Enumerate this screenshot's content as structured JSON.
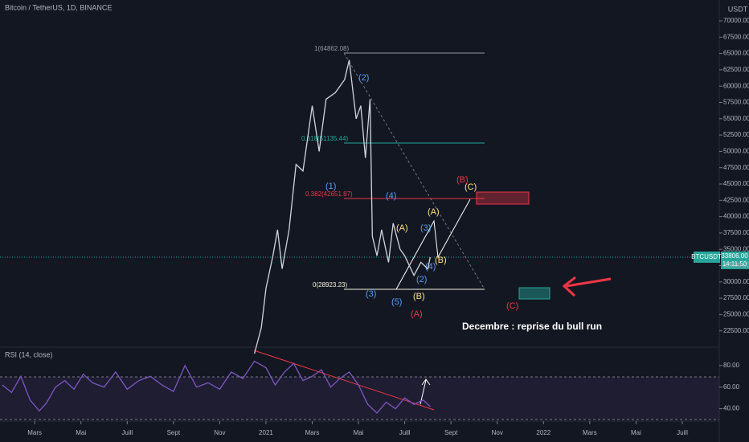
{
  "chart_data": [
    {
      "type": "line",
      "title": "Bitcoin / TetherUS, 1D, BINANCE",
      "y_unit": "USDT",
      "last_symbol": "BTCUSDT",
      "last_price": "33806.00",
      "countdown": "14:11:50",
      "xlim": [
        0.5,
        31.6
      ],
      "ylim": [
        20000,
        73200
      ],
      "yticks": [
        {
          "value": 22500,
          "label": "22500.00"
        },
        {
          "value": 25000,
          "label": "25000.00"
        },
        {
          "value": 27500,
          "label": "27500.00"
        },
        {
          "value": 30000,
          "label": "30000.00"
        },
        {
          "value": 32500,
          "label": "32500.00"
        },
        {
          "value": 35000,
          "label": "35000.00"
        },
        {
          "value": 37500,
          "label": "37500.00"
        },
        {
          "value": 40000,
          "label": "40000.00"
        },
        {
          "value": 42500,
          "label": "42500.00"
        },
        {
          "value": 45000,
          "label": "45000.00"
        },
        {
          "value": 47500,
          "label": "47500.00"
        },
        {
          "value": 50000,
          "label": "50000.00"
        },
        {
          "value": 52500,
          "label": "52500.00"
        },
        {
          "value": 55000,
          "label": "55000.00"
        },
        {
          "value": 57500,
          "label": "57500.00"
        },
        {
          "value": 60000,
          "label": "60000.00"
        },
        {
          "value": 62500,
          "label": "62500.00"
        },
        {
          "value": 65000,
          "label": "65000.00"
        },
        {
          "value": 67500,
          "label": "67500.00"
        },
        {
          "value": 70000,
          "label": "70000.00"
        }
      ],
      "series": [
        {
          "name": "BTCUSDT",
          "color": "#d1d4dc",
          "x": [
            11.5,
            11.8,
            12.0,
            12.3,
            12.5,
            12.7,
            13.0,
            13.3,
            13.6,
            14.0,
            14.3,
            14.6,
            15.0,
            15.4,
            15.6,
            15.9,
            16.1,
            16.3,
            16.5,
            16.6,
            16.8,
            17.0,
            17.3,
            17.5,
            17.8,
            18.0,
            18.4,
            18.7,
            19.0,
            19.1
          ],
          "values": [
            19000,
            23000,
            29000,
            34000,
            38000,
            32000,
            38000,
            48000,
            47000,
            57000,
            50000,
            58000,
            59000,
            61000,
            64000,
            55000,
            57000,
            49000,
            58000,
            37000,
            34000,
            38000,
            33000,
            39000,
            35000,
            34000,
            31000,
            33000,
            32000,
            33800
          ]
        }
      ],
      "annotations": {
        "fib_1": "1(64862.08)",
        "fib_618": "0.618(51135.44)",
        "fib_382": "0.382(42651.87)",
        "fib_0": "0(28923.23)",
        "w1": "(1)",
        "w2": "(2)",
        "w3": "(3)",
        "w4": "(4)",
        "w5": "(5)",
        "a1": "(A)",
        "b1": "(B)",
        "a2": "(A)",
        "b2": "(B)",
        "c1": "(C)",
        "b3": "(B)",
        "c2": "(C)",
        "a3": "(A)",
        "w2b": "(2)",
        "w3b": "(3)",
        "w4b": "(4)",
        "b4": "(B)",
        "note": "Decembre : reprise du bull run"
      }
    },
    {
      "type": "line",
      "title": "RSI (14, close)",
      "xlim": [
        0.5,
        31.6
      ],
      "ylim": [
        30,
        97
      ],
      "yticks": [
        {
          "value": 40,
          "label": "40.00"
        },
        {
          "value": 60,
          "label": "60.00"
        },
        {
          "value": 80,
          "label": "80.00"
        }
      ],
      "xticks": [
        {
          "value": 2,
          "label": "Mars"
        },
        {
          "value": 4,
          "label": "Mai"
        },
        {
          "value": 6,
          "label": "Juill"
        },
        {
          "value": 8,
          "label": "Sept"
        },
        {
          "value": 10,
          "label": "Nov"
        },
        {
          "value": 12,
          "label": "2021"
        },
        {
          "value": 14,
          "label": "Mars"
        },
        {
          "value": 16,
          "label": "Mai"
        },
        {
          "value": 18,
          "label": "Juill"
        },
        {
          "value": 20,
          "label": "Sept"
        },
        {
          "value": 22,
          "label": "Nov"
        },
        {
          "value": 24,
          "label": "2022"
        },
        {
          "value": 26,
          "label": "Mars"
        },
        {
          "value": 28,
          "label": "Mai"
        },
        {
          "value": 30,
          "label": "Juill"
        }
      ],
      "series": [
        {
          "name": "RSI",
          "color": "#7e57c2",
          "x": [
            0.6,
            1.0,
            1.4,
            1.8,
            2.2,
            2.5,
            2.9,
            3.3,
            3.7,
            4.1,
            4.5,
            5.0,
            5.5,
            6.0,
            6.5,
            7.0,
            7.5,
            8.0,
            8.5,
            9.0,
            9.5,
            10.0,
            10.5,
            11.0,
            11.5,
            12.0,
            12.4,
            12.8,
            13.2,
            13.6,
            14.0,
            14.4,
            14.8,
            15.2,
            15.6,
            16.0,
            16.4,
            16.8,
            17.2,
            17.6,
            18.0,
            18.4,
            18.8,
            19.1
          ],
          "values": [
            62,
            55,
            70,
            48,
            38,
            45,
            60,
            66,
            58,
            72,
            64,
            60,
            74,
            58,
            66,
            70,
            62,
            56,
            80,
            60,
            64,
            58,
            74,
            68,
            84,
            78,
            62,
            74,
            82,
            66,
            70,
            76,
            60,
            68,
            74,
            62,
            44,
            36,
            46,
            40,
            50,
            44,
            48,
            42
          ]
        }
      ]
    }
  ]
}
